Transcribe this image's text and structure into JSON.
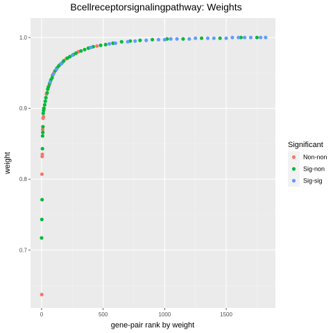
{
  "chart_data": {
    "type": "scatter",
    "title": "Bcellreceptorsignalingpathway: Weights",
    "xlabel": "gene-pair rank by weight",
    "ylabel": "weight",
    "xlim": [
      -90,
      1900
    ],
    "ylim": [
      0.618,
      1.0275
    ],
    "xticks": [
      0,
      500,
      1000,
      1500
    ],
    "xtick_labels": [
      "0",
      "500",
      "1000",
      "1500"
    ],
    "yticks": [
      0.7,
      0.8,
      0.9,
      1.0
    ],
    "ytick_labels": [
      "0.7",
      "0.8",
      "0.9",
      "1.0"
    ],
    "grid": true,
    "legend": {
      "title": "Significant",
      "position": "right",
      "entries": [
        {
          "label": "Non-non",
          "color": "#F8766D"
        },
        {
          "label": "Sig-non",
          "color": "#00BA38"
        },
        {
          "label": "Sig-sig",
          "color": "#619CFF"
        }
      ]
    },
    "series": [
      {
        "name": "Non-non",
        "color": "#F8766D",
        "points": [
          [
            1,
            0.637
          ],
          [
            3,
            0.807
          ],
          [
            5,
            0.832
          ],
          [
            6,
            0.835
          ],
          [
            9,
            0.87
          ],
          [
            12,
            0.886
          ],
          [
            15,
            0.888
          ],
          [
            20,
            0.9
          ],
          [
            40,
            0.92
          ],
          [
            60,
            0.932
          ],
          [
            100,
            0.95
          ],
          [
            150,
            0.962
          ],
          [
            200,
            0.97
          ],
          [
            300,
            0.98
          ],
          [
            450,
            0.988
          ]
        ]
      },
      {
        "name": "Sig-non",
        "color": "#00BA38",
        "points": [
          [
            0,
            0.717
          ],
          [
            2,
            0.743
          ],
          [
            4,
            0.771
          ],
          [
            7,
            0.843
          ],
          [
            8,
            0.861
          ],
          [
            10,
            0.866
          ],
          [
            11,
            0.874
          ],
          [
            13,
            0.893
          ],
          [
            16,
            0.897
          ],
          [
            18,
            0.9
          ],
          [
            25,
            0.905
          ],
          [
            30,
            0.91
          ],
          [
            35,
            0.915
          ],
          [
            45,
            0.922
          ],
          [
            50,
            0.927
          ],
          [
            55,
            0.93
          ],
          [
            65,
            0.935
          ],
          [
            75,
            0.94
          ],
          [
            85,
            0.943
          ],
          [
            90,
            0.947
          ],
          [
            110,
            0.953
          ],
          [
            125,
            0.957
          ],
          [
            140,
            0.96
          ],
          [
            165,
            0.964
          ],
          [
            180,
            0.967
          ],
          [
            210,
            0.971
          ],
          [
            230,
            0.973
          ],
          [
            260,
            0.976
          ],
          [
            280,
            0.978
          ],
          [
            320,
            0.981
          ],
          [
            350,
            0.983
          ],
          [
            380,
            0.985
          ],
          [
            420,
            0.987
          ],
          [
            480,
            0.989
          ],
          [
            520,
            0.99
          ],
          [
            580,
            0.992
          ],
          [
            650,
            0.994
          ],
          [
            720,
            0.995
          ],
          [
            800,
            0.996
          ],
          [
            900,
            0.997
          ],
          [
            1020,
            0.998
          ],
          [
            1150,
            0.998
          ],
          [
            1300,
            0.999
          ],
          [
            1450,
            0.999
          ],
          [
            1620,
            1.0
          ],
          [
            1750,
            1.0
          ]
        ]
      },
      {
        "name": "Sig-sig",
        "color": "#619CFF",
        "points": [
          [
            70,
            0.937
          ],
          [
            95,
            0.948
          ],
          [
            120,
            0.955
          ],
          [
            160,
            0.963
          ],
          [
            250,
            0.975
          ],
          [
            400,
            0.986
          ],
          [
            550,
            0.991
          ],
          [
            600,
            0.992
          ],
          [
            700,
            0.994
          ],
          [
            760,
            0.995
          ],
          [
            850,
            0.996
          ],
          [
            950,
            0.997
          ],
          [
            1000,
            0.997
          ],
          [
            1050,
            0.998
          ],
          [
            1100,
            0.998
          ],
          [
            1200,
            0.998
          ],
          [
            1250,
            0.999
          ],
          [
            1350,
            0.999
          ],
          [
            1400,
            0.999
          ],
          [
            1500,
            0.999
          ],
          [
            1550,
            1.0
          ],
          [
            1600,
            1.0
          ],
          [
            1650,
            1.0
          ],
          [
            1700,
            1.0
          ],
          [
            1780,
            1.0
          ],
          [
            1820,
            1.0
          ]
        ]
      }
    ]
  }
}
